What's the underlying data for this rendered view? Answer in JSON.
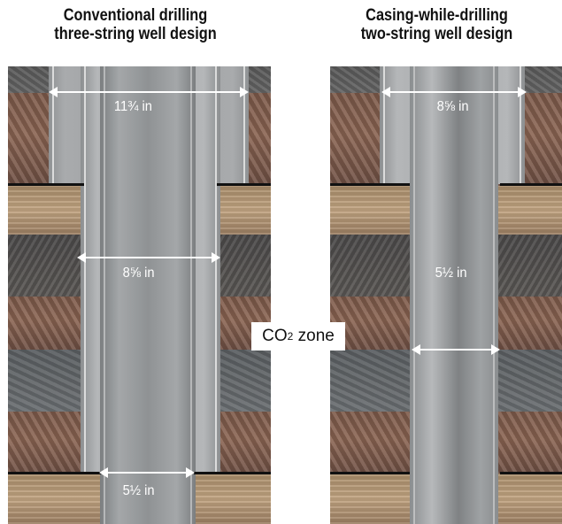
{
  "titles": {
    "left": "Conventional drilling\nthree-string well design",
    "right": "Casing-while-drilling\ntwo-string well design"
  },
  "left": {
    "label_outer": "11¾ in",
    "label_mid": "8⅝ in",
    "label_inner": "5½ in"
  },
  "right": {
    "label_outer": "8⅝ in",
    "label_inner": "5½ in"
  },
  "zone": {
    "prefix": "CO",
    "subscript": "2",
    "suffix": " zone"
  },
  "colors": {
    "boundary": "#111111",
    "arrow": "#ffffff",
    "casing": "#a0a2a4"
  }
}
